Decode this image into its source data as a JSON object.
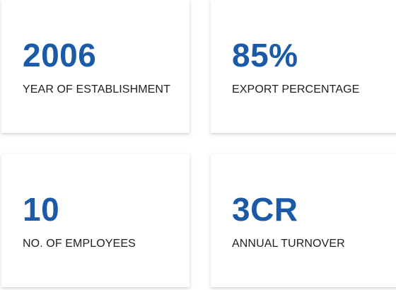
{
  "theme": {
    "value_color": "#1a5aa6",
    "label_color": "#1f1f1f",
    "card_background": "#ffffff"
  },
  "stats": [
    {
      "value": "2006",
      "label": "YEAR OF ESTABLISHMENT"
    },
    {
      "value": "85%",
      "label": "EXPORT PERCENTAGE"
    },
    {
      "value": "10",
      "label": "NO. OF EMPLOYEES"
    },
    {
      "value": "3CR",
      "label": "ANNUAL TURNOVER"
    }
  ]
}
